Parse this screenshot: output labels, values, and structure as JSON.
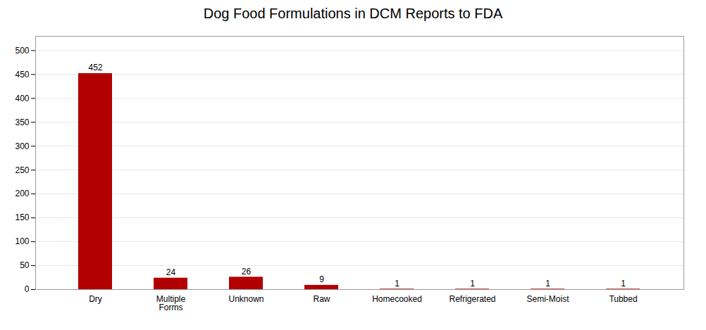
{
  "chart_data": {
    "type": "bar",
    "title": "Dog Food Formulations in DCM Reports to FDA",
    "categories": [
      "Dry",
      "Multiple\nForms",
      "Unknown",
      "Raw",
      "Homecooked",
      "Refrigerated",
      "Semi-Moist",
      "Tubbed"
    ],
    "values": [
      452,
      24,
      26,
      9,
      1,
      1,
      1,
      1
    ],
    "color": "#B20000",
    "ylim": [
      0,
      530
    ],
    "yticks": [
      0,
      50,
      100,
      150,
      200,
      250,
      300,
      350,
      400,
      450,
      500
    ],
    "grid": true,
    "data_labels": true
  }
}
